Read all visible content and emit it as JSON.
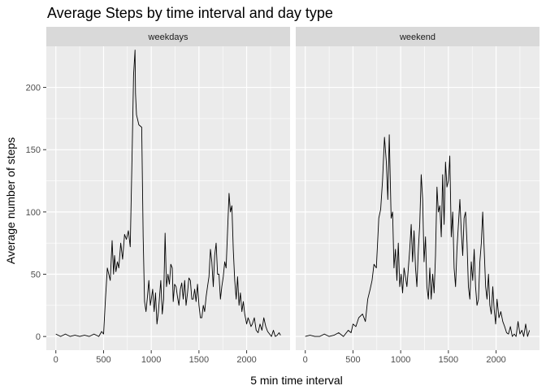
{
  "chart_data": {
    "type": "line",
    "title": "Average Steps by time interval and day type",
    "xlabel": "5 min time interval",
    "ylabel": "Average number of steps",
    "xlim": [
      -100,
      2455
    ],
    "ylim": [
      -11,
      233
    ],
    "xticks": [
      0,
      500,
      1000,
      1500,
      2000
    ],
    "yticks": [
      0,
      50,
      100,
      150,
      200
    ],
    "grid": true,
    "legend": "none",
    "colors": {
      "panel_bg": "#EBEBEB",
      "grid": "#FFFFFF",
      "strip_bg": "#D9D9D9",
      "line": "#000000"
    },
    "panels": [
      {
        "label": "weekdays",
        "x": [
          0,
          50,
          100,
          150,
          200,
          250,
          300,
          350,
          400,
          450,
          480,
          500,
          520,
          540,
          555,
          570,
          590,
          605,
          615,
          630,
          645,
          660,
          680,
          700,
          720,
          740,
          760,
          780,
          800,
          815,
          830,
          835,
          845,
          855,
          870,
          900,
          915,
          930,
          945,
          960,
          975,
          990,
          1000,
          1015,
          1030,
          1045,
          1060,
          1075,
          1090,
          1100,
          1115,
          1130,
          1145,
          1160,
          1175,
          1190,
          1205,
          1220,
          1230,
          1245,
          1260,
          1275,
          1290,
          1305,
          1320,
          1335,
          1350,
          1365,
          1380,
          1395,
          1410,
          1425,
          1440,
          1455,
          1470,
          1485,
          1500,
          1515,
          1530,
          1545,
          1560,
          1575,
          1590,
          1605,
          1620,
          1635,
          1650,
          1665,
          1680,
          1695,
          1710,
          1725,
          1740,
          1755,
          1770,
          1785,
          1800,
          1815,
          1830,
          1845,
          1860,
          1875,
          1890,
          1905,
          1920,
          1935,
          1950,
          1965,
          1980,
          2000,
          2015,
          2030,
          2045,
          2060,
          2080,
          2100,
          2120,
          2140,
          2160,
          2180,
          2200,
          2220,
          2240,
          2260,
          2280,
          2300,
          2320,
          2340,
          2355
        ],
        "y": [
          2,
          0,
          2,
          0,
          1,
          0,
          1,
          0,
          2,
          0,
          4,
          2,
          30,
          55,
          50,
          45,
          77,
          50,
          65,
          52,
          60,
          55,
          75,
          62,
          82,
          78,
          85,
          72,
          150,
          210,
          230,
          195,
          178,
          175,
          170,
          168,
          80,
          28,
          20,
          32,
          45,
          25,
          30,
          38,
          20,
          35,
          10,
          20,
          35,
          45,
          18,
          30,
          83,
          40,
          50,
          42,
          58,
          55,
          28,
          42,
          40,
          32,
          25,
          38,
          43,
          30,
          45,
          25,
          35,
          47,
          45,
          30,
          30,
          38,
          28,
          42,
          25,
          15,
          15,
          25,
          20,
          32,
          40,
          48,
          70,
          60,
          40,
          65,
          75,
          50,
          50,
          30,
          40,
          48,
          60,
          55,
          85,
          115,
          100,
          105,
          70,
          45,
          30,
          48,
          25,
          35,
          20,
          28,
          18,
          10,
          15,
          12,
          8,
          10,
          15,
          5,
          3,
          10,
          5,
          15,
          8,
          4,
          2,
          0,
          5,
          0,
          1,
          3,
          1
        ]
      },
      {
        "label": "weekend",
        "x": [
          0,
          50,
          100,
          150,
          200,
          250,
          300,
          350,
          400,
          450,
          480,
          500,
          530,
          560,
          600,
          630,
          655,
          680,
          700,
          720,
          745,
          770,
          790,
          810,
          830,
          850,
          865,
          880,
          900,
          915,
          930,
          945,
          960,
          975,
          990,
          1005,
          1020,
          1035,
          1050,
          1065,
          1080,
          1095,
          1110,
          1125,
          1140,
          1155,
          1170,
          1185,
          1200,
          1215,
          1230,
          1245,
          1260,
          1275,
          1290,
          1305,
          1320,
          1335,
          1350,
          1365,
          1380,
          1395,
          1410,
          1425,
          1440,
          1455,
          1470,
          1485,
          1500,
          1515,
          1530,
          1545,
          1560,
          1575,
          1590,
          1605,
          1620,
          1635,
          1650,
          1665,
          1680,
          1695,
          1710,
          1725,
          1740,
          1755,
          1770,
          1785,
          1800,
          1815,
          1830,
          1845,
          1860,
          1875,
          1890,
          1905,
          1920,
          1935,
          1950,
          1965,
          1980,
          1995,
          2010,
          2030,
          2050,
          2070,
          2090,
          2110,
          2130,
          2150,
          2170,
          2190,
          2210,
          2230,
          2250,
          2270,
          2290,
          2310,
          2330,
          2350
        ],
        "y": [
          0,
          1,
          0,
          0,
          2,
          0,
          1,
          3,
          0,
          5,
          3,
          10,
          8,
          15,
          18,
          12,
          30,
          38,
          45,
          58,
          55,
          95,
          102,
          125,
          160,
          140,
          110,
          162,
          95,
          100,
          55,
          70,
          45,
          75,
          40,
          50,
          35,
          55,
          48,
          40,
          55,
          70,
          90,
          60,
          85,
          55,
          40,
          70,
          90,
          130,
          110,
          60,
          80,
          40,
          30,
          55,
          30,
          50,
          35,
          65,
          120,
          100,
          105,
          80,
          130,
          90,
          140,
          120,
          125,
          145,
          80,
          100,
          55,
          40,
          70,
          90,
          110,
          85,
          65,
          95,
          100,
          75,
          40,
          30,
          60,
          45,
          70,
          40,
          25,
          30,
          60,
          75,
          100,
          70,
          40,
          30,
          50,
          25,
          18,
          40,
          22,
          10,
          30,
          15,
          20,
          12,
          8,
          3,
          2,
          8,
          0,
          2,
          0,
          12,
          2,
          5,
          0,
          10,
          0,
          5
        ]
      }
    ]
  }
}
